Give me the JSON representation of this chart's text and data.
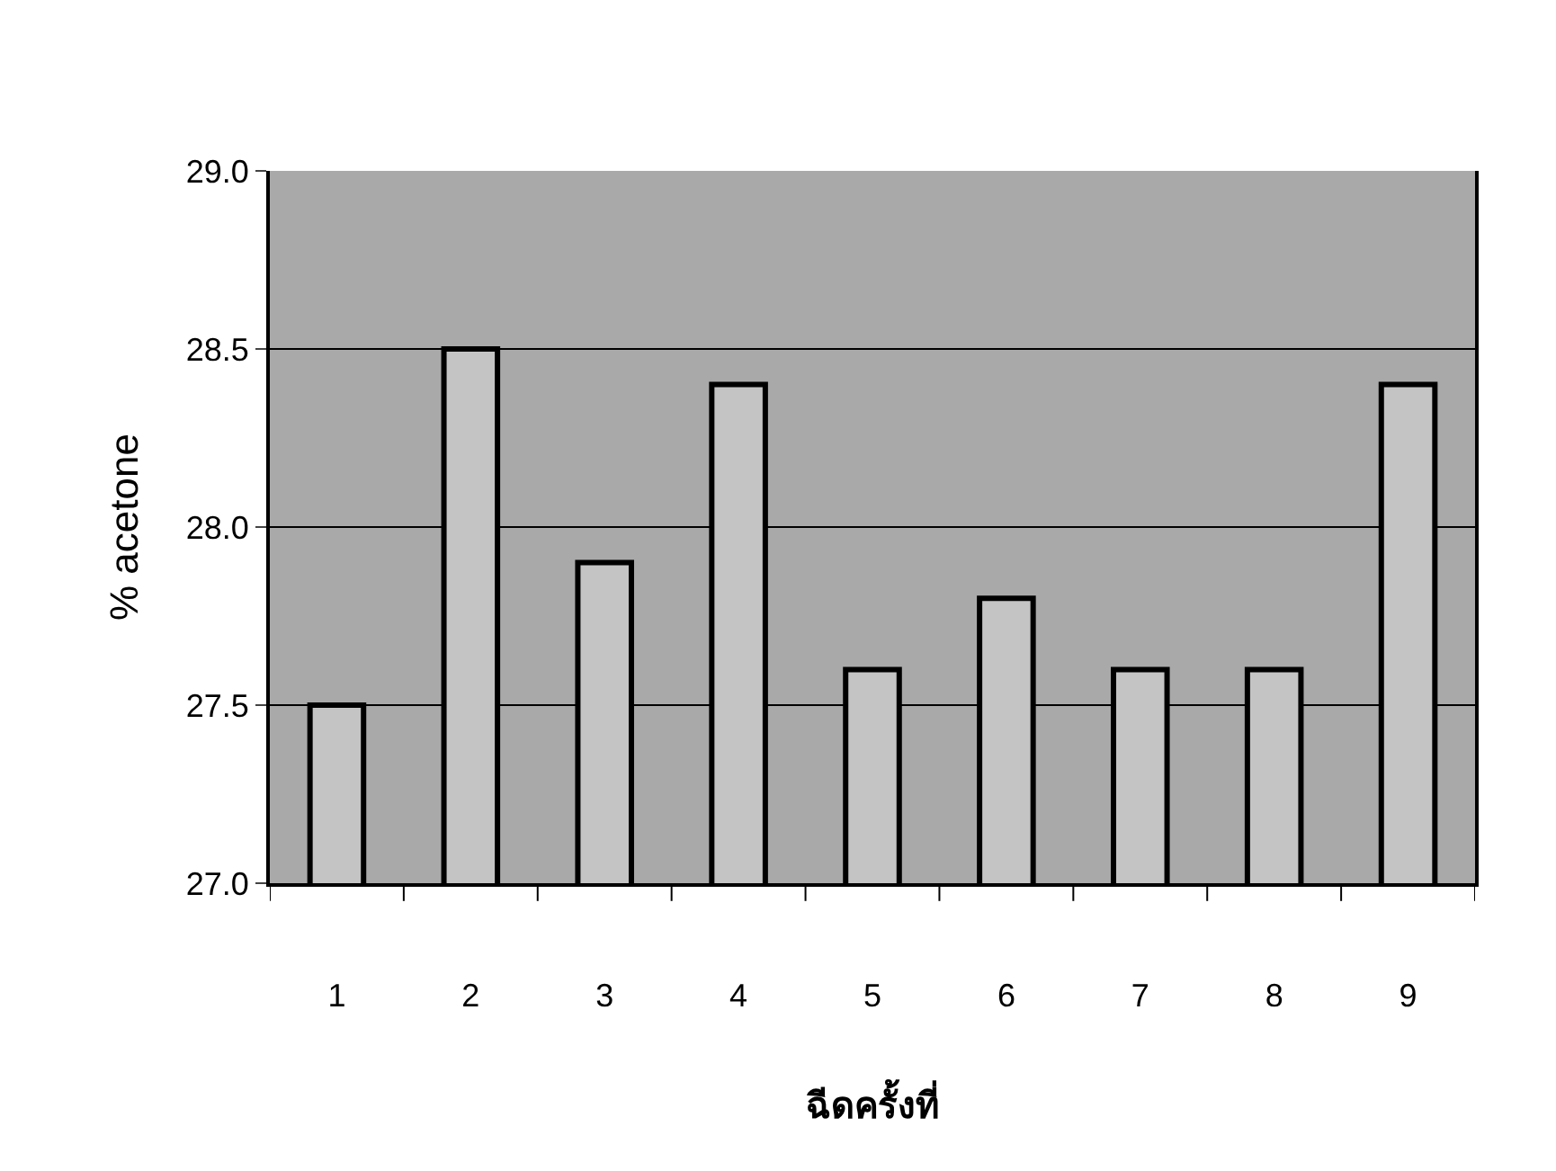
{
  "chart_data": {
    "type": "bar",
    "xlabel": "ฉีดครั้งที่",
    "ylabel": "% acetone",
    "categories": [
      "1",
      "2",
      "3",
      "4",
      "5",
      "6",
      "7",
      "8",
      "9"
    ],
    "values": [
      27.5,
      28.5,
      27.9,
      28.4,
      27.6,
      27.8,
      27.6,
      27.6,
      28.4
    ],
    "color": "#c4c4c4",
    "ylim": [
      27.0,
      29.0
    ],
    "yticks": [
      {
        "value": 27.0,
        "label": "27.0"
      },
      {
        "value": 27.5,
        "label": "27.5"
      },
      {
        "value": 28.0,
        "label": "28.0"
      },
      {
        "value": 28.5,
        "label": "28.5"
      },
      {
        "value": 29.0,
        "label": "29.0"
      }
    ],
    "grid": "y"
  }
}
